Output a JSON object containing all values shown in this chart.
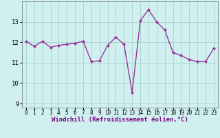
{
  "x": [
    0,
    1,
    2,
    3,
    4,
    5,
    6,
    7,
    8,
    9,
    10,
    11,
    12,
    13,
    14,
    15,
    16,
    17,
    18,
    19,
    20,
    21,
    22,
    23
  ],
  "y": [
    12.05,
    11.8,
    12.05,
    11.75,
    11.85,
    11.9,
    11.95,
    12.05,
    11.05,
    11.1,
    11.85,
    12.25,
    11.9,
    9.55,
    13.05,
    13.6,
    13.0,
    12.6,
    11.5,
    11.35,
    11.15,
    11.05,
    11.05,
    11.7
  ],
  "line_color": "#993399",
  "marker": "D",
  "marker_size": 2.0,
  "bg_color": "#d0f0f0",
  "grid_color": "#aacece",
  "xlabel": "Windchill (Refroidissement éolien,°C)",
  "xlabel_fontsize": 6.5,
  "ylabel_ticks": [
    9,
    10,
    11,
    12,
    13
  ],
  "xtick_labels": [
    "0",
    "1",
    "2",
    "3",
    "4",
    "5",
    "6",
    "7",
    "8",
    "9",
    "10",
    "11",
    "12",
    "13",
    "14",
    "15",
    "16",
    "17",
    "18",
    "19",
    "20",
    "21",
    "22",
    "23"
  ],
  "ylim": [
    8.8,
    14.0
  ],
  "xlim": [
    -0.5,
    23.5
  ],
  "ytick_fontsize": 6.5,
  "xtick_fontsize": 5.5,
  "line_width": 1.0
}
